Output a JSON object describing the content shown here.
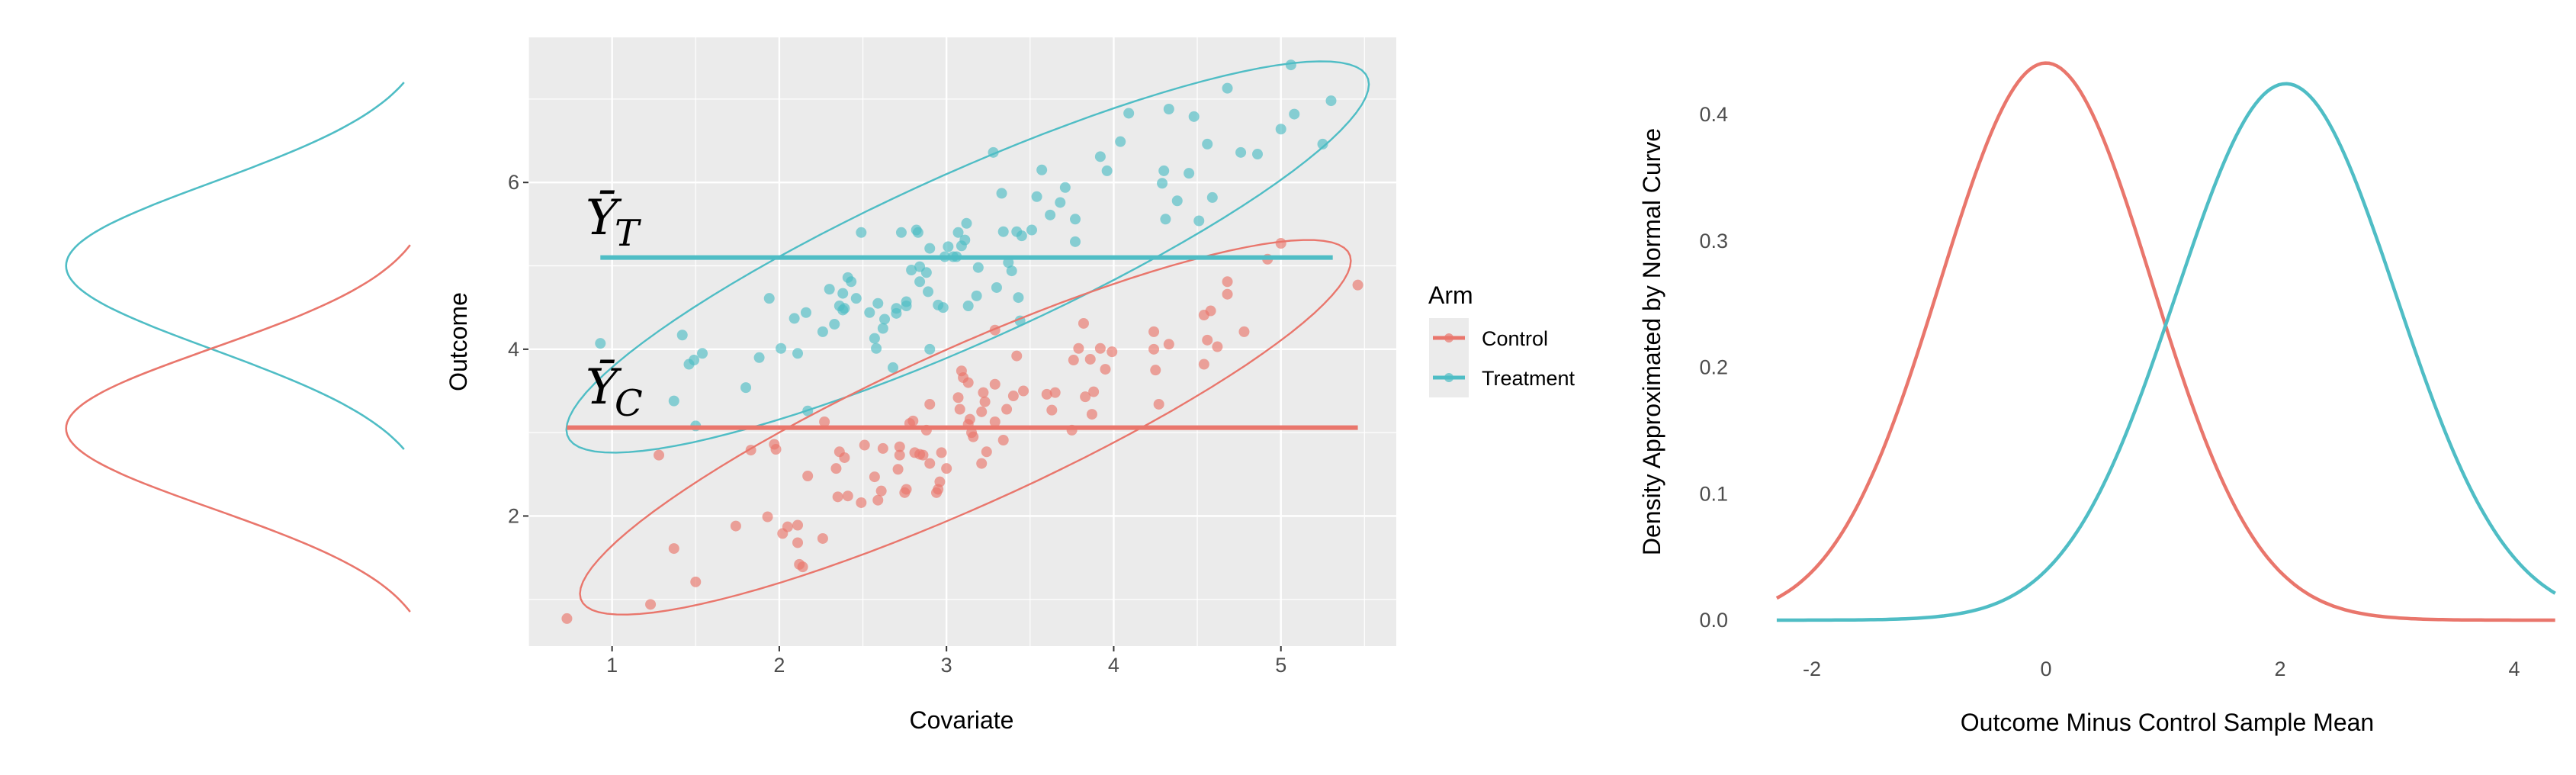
{
  "colors": {
    "control": "#E9766C",
    "treatment": "#4FBDC5",
    "panel_bg": "#EBEBEB",
    "grid": "#FFFFFF"
  },
  "chart_data": [
    {
      "type": "line",
      "orientation": "vertical-density",
      "series": [
        {
          "group": "treatment",
          "distribution": "normal",
          "mean": 5.0,
          "sd": 1.0
        },
        {
          "group": "control",
          "distribution": "normal",
          "mean": 3.05,
          "sd": 0.96
        }
      ]
    },
    {
      "type": "scatter",
      "xlabel": "Covariate",
      "ylabel": "Outcome",
      "xlim": [
        0.5,
        5.69
      ],
      "ylim": [
        0.44,
        7.74
      ],
      "xticks": [
        1,
        2,
        3,
        4,
        5
      ],
      "yticks": [
        2,
        4,
        6
      ],
      "grid": true,
      "legend": {
        "title": "Arm",
        "position": "right",
        "entries": [
          "Control",
          "Treatment"
        ]
      },
      "mean_lines": [
        {
          "series": "Treatment",
          "label_main": "Ȳ",
          "label_sub": "T",
          "y": 5.1,
          "x_from": 0.93,
          "x_to": 5.31
        },
        {
          "series": "Control",
          "label_main": "Ȳ",
          "label_sub": "C",
          "y": 3.06,
          "x_from": 0.73,
          "x_to": 5.46
        }
      ],
      "ellipses": true,
      "series": [
        {
          "name": "Treatment",
          "points": [
            [
              0.93,
              4.07
            ],
            [
              1.42,
              4.17
            ],
            [
              1.37,
              3.38
            ],
            [
              1.46,
              3.82
            ],
            [
              1.49,
              3.87
            ],
            [
              1.54,
              3.95
            ],
            [
              1.5,
              3.08
            ],
            [
              1.8,
              3.54
            ],
            [
              1.88,
              3.9
            ],
            [
              1.94,
              4.61
            ],
            [
              2.01,
              4.01
            ],
            [
              2.09,
              4.37
            ],
            [
              2.11,
              3.95
            ],
            [
              2.16,
              4.44
            ],
            [
              2.17,
              3.26
            ],
            [
              2.26,
              4.21
            ],
            [
              2.3,
              4.72
            ],
            [
              2.33,
              4.3
            ],
            [
              2.36,
              4.52
            ],
            [
              2.38,
              4.67
            ],
            [
              2.38,
              4.47
            ],
            [
              2.39,
              4.49
            ],
            [
              2.41,
              4.86
            ],
            [
              2.43,
              4.81
            ],
            [
              2.46,
              4.61
            ],
            [
              2.49,
              5.4
            ],
            [
              2.54,
              4.44
            ],
            [
              2.57,
              4.13
            ],
            [
              2.58,
              4.01
            ],
            [
              2.59,
              4.55
            ],
            [
              2.62,
              4.25
            ],
            [
              2.63,
              4.36
            ],
            [
              2.68,
              3.78
            ],
            [
              2.7,
              4.49
            ],
            [
              2.7,
              4.43
            ],
            [
              2.73,
              5.4
            ],
            [
              2.76,
              4.52
            ],
            [
              2.76,
              4.57
            ],
            [
              2.79,
              4.95
            ],
            [
              2.82,
              5.43
            ],
            [
              2.83,
              5.4
            ],
            [
              2.84,
              4.81
            ],
            [
              2.84,
              4.99
            ],
            [
              2.88,
              4.92
            ],
            [
              2.89,
              4.69
            ],
            [
              2.9,
              4.0
            ],
            [
              2.9,
              5.21
            ],
            [
              2.95,
              4.53
            ],
            [
              2.98,
              4.5
            ],
            [
              2.99,
              5.11
            ],
            [
              3.01,
              5.23
            ],
            [
              3.04,
              5.11
            ],
            [
              3.06,
              5.11
            ],
            [
              3.07,
              5.4
            ],
            [
              3.09,
              5.24
            ],
            [
              3.11,
              5.31
            ],
            [
              3.12,
              5.51
            ],
            [
              3.13,
              4.52
            ],
            [
              3.18,
              4.64
            ],
            [
              3.19,
              4.98
            ],
            [
              3.28,
              6.36
            ],
            [
              3.3,
              4.74
            ],
            [
              3.33,
              5.87
            ],
            [
              3.34,
              5.41
            ],
            [
              3.37,
              5.04
            ],
            [
              3.39,
              4.94
            ],
            [
              3.42,
              5.41
            ],
            [
              3.43,
              4.62
            ],
            [
              3.44,
              4.34
            ],
            [
              3.45,
              5.36
            ],
            [
              3.51,
              5.43
            ],
            [
              3.54,
              5.83
            ],
            [
              3.57,
              6.15
            ],
            [
              3.62,
              5.61
            ],
            [
              3.68,
              5.76
            ],
            [
              3.71,
              5.94
            ],
            [
              3.77,
              5.56
            ],
            [
              3.77,
              5.29
            ],
            [
              3.92,
              6.31
            ],
            [
              3.96,
              6.14
            ],
            [
              4.04,
              6.49
            ],
            [
              4.09,
              6.83
            ],
            [
              4.29,
              5.99
            ],
            [
              4.3,
              6.14
            ],
            [
              4.31,
              5.56
            ],
            [
              4.33,
              6.88
            ],
            [
              4.38,
              5.78
            ],
            [
              4.45,
              6.11
            ],
            [
              4.48,
              6.79
            ],
            [
              4.51,
              5.54
            ],
            [
              4.56,
              6.46
            ],
            [
              4.59,
              5.82
            ],
            [
              4.76,
              6.36
            ],
            [
              4.86,
              6.34
            ],
            [
              4.68,
              7.13
            ],
            [
              5.0,
              6.64
            ],
            [
              5.06,
              7.41
            ],
            [
              5.08,
              6.82
            ],
            [
              5.25,
              6.46
            ],
            [
              5.3,
              6.98
            ]
          ]
        },
        {
          "name": "Control",
          "points": [
            [
              0.73,
              0.77
            ],
            [
              1.23,
              0.94
            ],
            [
              1.28,
              2.73
            ],
            [
              1.37,
              1.61
            ],
            [
              1.5,
              1.21
            ],
            [
              1.74,
              1.88
            ],
            [
              1.83,
              2.79
            ],
            [
              1.93,
              1.99
            ],
            [
              1.97,
              2.86
            ],
            [
              1.98,
              2.8
            ],
            [
              2.02,
              1.79
            ],
            [
              2.05,
              1.87
            ],
            [
              2.11,
              1.68
            ],
            [
              2.11,
              1.89
            ],
            [
              2.12,
              1.42
            ],
            [
              2.14,
              1.39
            ],
            [
              2.17,
              2.48
            ],
            [
              2.26,
              1.73
            ],
            [
              2.27,
              3.13
            ],
            [
              2.34,
              2.57
            ],
            [
              2.35,
              2.23
            ],
            [
              2.36,
              2.77
            ],
            [
              2.39,
              2.7
            ],
            [
              2.41,
              2.24
            ],
            [
              2.49,
              2.16
            ],
            [
              2.51,
              2.85
            ],
            [
              2.57,
              2.47
            ],
            [
              2.59,
              2.19
            ],
            [
              2.61,
              2.3
            ],
            [
              2.62,
              2.81
            ],
            [
              2.71,
              2.56
            ],
            [
              2.72,
              2.83
            ],
            [
              2.72,
              2.73
            ],
            [
              2.75,
              2.28
            ],
            [
              2.76,
              2.32
            ],
            [
              2.78,
              3.11
            ],
            [
              2.8,
              3.14
            ],
            [
              2.81,
              2.76
            ],
            [
              2.84,
              2.74
            ],
            [
              2.86,
              2.73
            ],
            [
              2.88,
              3.03
            ],
            [
              2.9,
              3.34
            ],
            [
              2.9,
              2.63
            ],
            [
              2.94,
              2.28
            ],
            [
              2.95,
              2.32
            ],
            [
              2.96,
              2.41
            ],
            [
              2.97,
              2.76
            ],
            [
              3.0,
              2.57
            ],
            [
              3.07,
              3.42
            ],
            [
              3.08,
              3.28
            ],
            [
              3.09,
              3.74
            ],
            [
              3.1,
              3.66
            ],
            [
              3.13,
              3.1
            ],
            [
              3.13,
              3.6
            ],
            [
              3.14,
              3.16
            ],
            [
              3.15,
              3.0
            ],
            [
              3.16,
              2.95
            ],
            [
              3.21,
              2.63
            ],
            [
              3.21,
              3.25
            ],
            [
              3.22,
              3.48
            ],
            [
              3.23,
              3.37
            ],
            [
              3.24,
              2.77
            ],
            [
              3.29,
              3.13
            ],
            [
              3.29,
              4.23
            ],
            [
              3.29,
              3.58
            ],
            [
              3.34,
              2.91
            ],
            [
              3.36,
              3.28
            ],
            [
              3.4,
              3.44
            ],
            [
              3.42,
              3.92
            ],
            [
              3.46,
              3.5
            ],
            [
              3.6,
              3.46
            ],
            [
              3.63,
              3.27
            ],
            [
              3.65,
              3.48
            ],
            [
              3.75,
              3.03
            ],
            [
              3.76,
              3.87
            ],
            [
              3.79,
              4.01
            ],
            [
              3.82,
              4.31
            ],
            [
              3.83,
              3.43
            ],
            [
              3.86,
              3.88
            ],
            [
              3.87,
              3.22
            ],
            [
              3.88,
              3.49
            ],
            [
              3.92,
              4.01
            ],
            [
              3.95,
              3.76
            ],
            [
              3.99,
              3.97
            ],
            [
              4.24,
              4.0
            ],
            [
              4.24,
              4.21
            ],
            [
              4.25,
              3.75
            ],
            [
              4.27,
              3.34
            ],
            [
              4.33,
              4.06
            ],
            [
              4.54,
              4.41
            ],
            [
              4.54,
              3.82
            ],
            [
              4.56,
              4.11
            ],
            [
              4.58,
              4.46
            ],
            [
              4.62,
              4.03
            ],
            [
              4.68,
              4.81
            ],
            [
              4.68,
              4.66
            ],
            [
              4.78,
              4.21
            ],
            [
              4.92,
              5.08
            ],
            [
              5.0,
              5.27
            ],
            [
              5.46,
              4.77
            ]
          ]
        }
      ]
    },
    {
      "type": "line",
      "xlabel": "Outcome Minus Control Sample Mean",
      "ylabel": "Density Approximated by Normal Curve",
      "xlim": [
        -2.3,
        4.35
      ],
      "ylim": [
        0,
        0.45
      ],
      "xticks": [
        "-2",
        "0",
        "2",
        "4"
      ],
      "yticks": [
        "0.0",
        "0.1",
        "0.2",
        "0.3",
        "0.4"
      ],
      "grid": false,
      "series": [
        {
          "group": "control",
          "distribution": "normal",
          "mean": 0,
          "sd": 0.905
        },
        {
          "group": "treatment",
          "distribution": "normal",
          "mean": 2.05,
          "sd": 0.94
        }
      ]
    }
  ]
}
